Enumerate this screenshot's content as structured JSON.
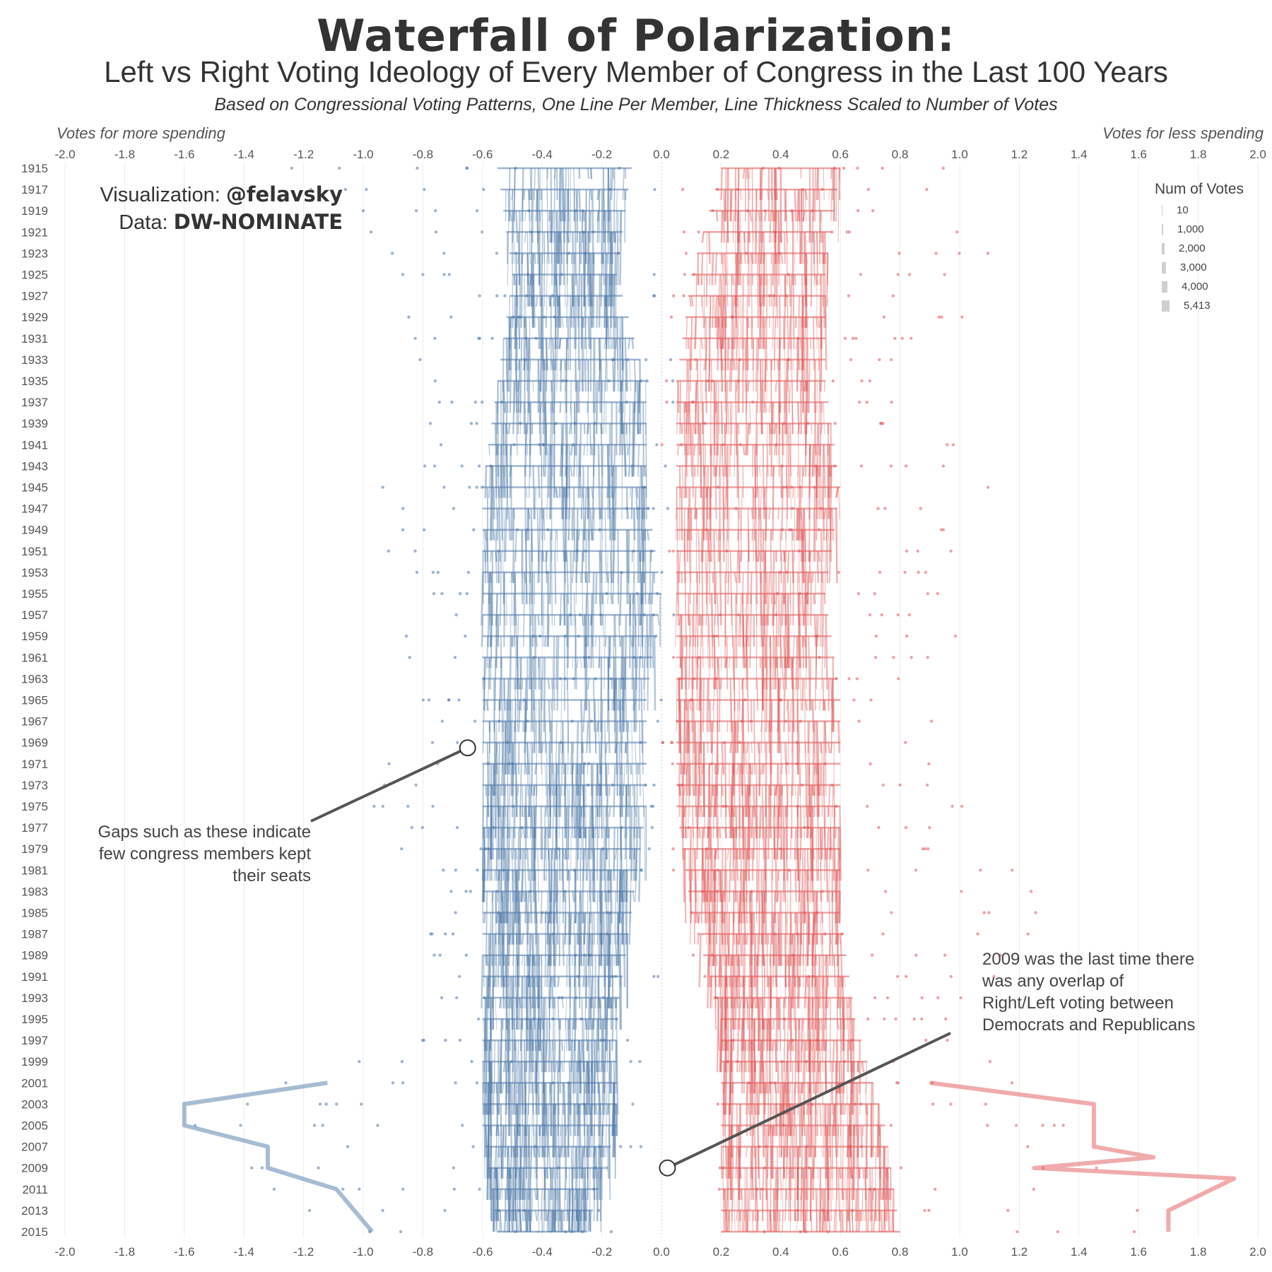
{
  "header": {
    "title": "Waterfall of Polarization:",
    "subtitle": "Left vs Right Voting Ideology of Every Member of Congress in the Last 100 Years",
    "description": "Based on Congressional Voting Patterns, One Line Per Member, Line Thickness Scaled to Number of Votes"
  },
  "axis_notes": {
    "left": "Votes for more spending",
    "right": "Votes for less spending"
  },
  "credit": {
    "viz_label": "Visualization: ",
    "viz_value": "@felavsky",
    "data_label": "Data: ",
    "data_value": "DW-NOMINATE"
  },
  "annotations": {
    "gaps": [
      "Gaps such as these indicate",
      "few congress members kept",
      "their seats"
    ],
    "overlap": [
      "2009 was the last time there",
      "was any overlap of",
      "Right/Left voting between",
      "Democrats and Republicans"
    ]
  },
  "legend": {
    "title": "Num of Votes",
    "items": [
      "10",
      "1,000",
      "2,000",
      "3,000",
      "4,000",
      "5,413"
    ]
  },
  "colors": {
    "democrat": "#4e79a7",
    "republican": "#e15759",
    "grid": "#ececec",
    "annotation": "#555555"
  },
  "chart_data": {
    "type": "line",
    "x_ticks": [
      "-2.0",
      "-1.8",
      "-1.6",
      "-1.4",
      "-1.2",
      "-1.0",
      "-0.8",
      "-0.6",
      "-0.4",
      "-0.2",
      "0.0",
      "0.2",
      "0.4",
      "0.6",
      "0.8",
      "1.0",
      "1.2",
      "1.4",
      "1.6",
      "1.8",
      "2.0"
    ],
    "xlim": [
      -2.0,
      2.0
    ],
    "y_ticks": [
      "1915",
      "1917",
      "1919",
      "1921",
      "1923",
      "1925",
      "1927",
      "1929",
      "1931",
      "1933",
      "1935",
      "1937",
      "1939",
      "1941",
      "1943",
      "1945",
      "1947",
      "1949",
      "1951",
      "1953",
      "1955",
      "1957",
      "1959",
      "1961",
      "1963",
      "1965",
      "1967",
      "1969",
      "1971",
      "1973",
      "1975",
      "1977",
      "1979",
      "1981",
      "1983",
      "1985",
      "1987",
      "1989",
      "1991",
      "1993",
      "1995",
      "1997",
      "1999",
      "2001",
      "2003",
      "2005",
      "2007",
      "2009",
      "2011",
      "2013",
      "2015"
    ],
    "ylim": [
      1915,
      2015
    ],
    "grid": true,
    "series": [
      {
        "color": "#4e79a7",
        "bands": [
          {
            "year": 1915,
            "q10": -0.55,
            "q90": -0.1,
            "min": -1.25,
            "max": 0.0
          },
          {
            "year": 1925,
            "q10": -0.5,
            "q90": -0.15,
            "min": -0.9,
            "max": 0.0
          },
          {
            "year": 1935,
            "q10": -0.55,
            "q90": -0.05,
            "min": -0.8,
            "max": 0.05
          },
          {
            "year": 1945,
            "q10": -0.6,
            "q90": -0.05,
            "min": -1.0,
            "max": 0.05
          },
          {
            "year": 1955,
            "q10": -0.6,
            "q90": 0.0,
            "min": -0.9,
            "max": 0.05
          },
          {
            "year": 1965,
            "q10": -0.6,
            "q90": -0.05,
            "min": -0.9,
            "max": 0.05
          },
          {
            "year": 1975,
            "q10": -0.6,
            "q90": -0.05,
            "min": -1.0,
            "max": 0.0
          },
          {
            "year": 1985,
            "q10": -0.6,
            "q90": -0.1,
            "min": -0.8,
            "max": 0.0
          },
          {
            "year": 1995,
            "q10": -0.6,
            "q90": -0.15,
            "min": -0.8,
            "max": 0.0
          },
          {
            "year": 2005,
            "q10": -0.6,
            "q90": -0.15,
            "min": -1.6,
            "max": -0.05
          },
          {
            "year": 2015,
            "q10": -0.55,
            "q90": -0.25,
            "min": -1.1,
            "max": -0.1
          }
        ],
        "outlier_path": [
          [
            -1.12,
            2001
          ],
          [
            -1.6,
            2003
          ],
          [
            -1.6,
            2005
          ],
          [
            -1.32,
            2007
          ],
          [
            -1.32,
            2009
          ],
          [
            -1.09,
            2011
          ],
          [
            -0.97,
            2015
          ]
        ]
      },
      {
        "color": "#e15759",
        "bands": [
          {
            "year": 1915,
            "q10": 0.2,
            "q90": 0.6,
            "min": 0.05,
            "max": 0.95
          },
          {
            "year": 1925,
            "q10": 0.1,
            "q90": 0.55,
            "min": 0.05,
            "max": 1.2
          },
          {
            "year": 1935,
            "q10": 0.05,
            "q90": 0.55,
            "min": 0.0,
            "max": 0.8
          },
          {
            "year": 1945,
            "q10": 0.05,
            "q90": 0.6,
            "min": 0.0,
            "max": 1.1
          },
          {
            "year": 1955,
            "q10": 0.05,
            "q90": 0.55,
            "min": 0.0,
            "max": 1.0
          },
          {
            "year": 1965,
            "q10": 0.05,
            "q90": 0.6,
            "min": 0.0,
            "max": 1.0
          },
          {
            "year": 1975,
            "q10": 0.05,
            "q90": 0.6,
            "min": 0.0,
            "max": 1.1
          },
          {
            "year": 1985,
            "q10": 0.1,
            "q90": 0.6,
            "min": 0.05,
            "max": 1.3
          },
          {
            "year": 1995,
            "q10": 0.2,
            "q90": 0.65,
            "min": 0.1,
            "max": 1.0
          },
          {
            "year": 2005,
            "q10": 0.2,
            "q90": 0.75,
            "min": 0.15,
            "max": 1.45
          },
          {
            "year": 2015,
            "q10": 0.2,
            "q90": 0.8,
            "min": 0.15,
            "max": 1.9
          }
        ],
        "outlier_path": [
          [
            0.9,
            2001
          ],
          [
            1.45,
            2003
          ],
          [
            1.45,
            2007
          ],
          [
            1.65,
            2008
          ],
          [
            1.25,
            2009
          ],
          [
            1.92,
            2010
          ],
          [
            1.7,
            2013
          ],
          [
            1.7,
            2015
          ]
        ]
      }
    ],
    "callouts": [
      {
        "x": -0.65,
        "year": 1969.5
      },
      {
        "x": 0.02,
        "year": 2009
      }
    ]
  }
}
